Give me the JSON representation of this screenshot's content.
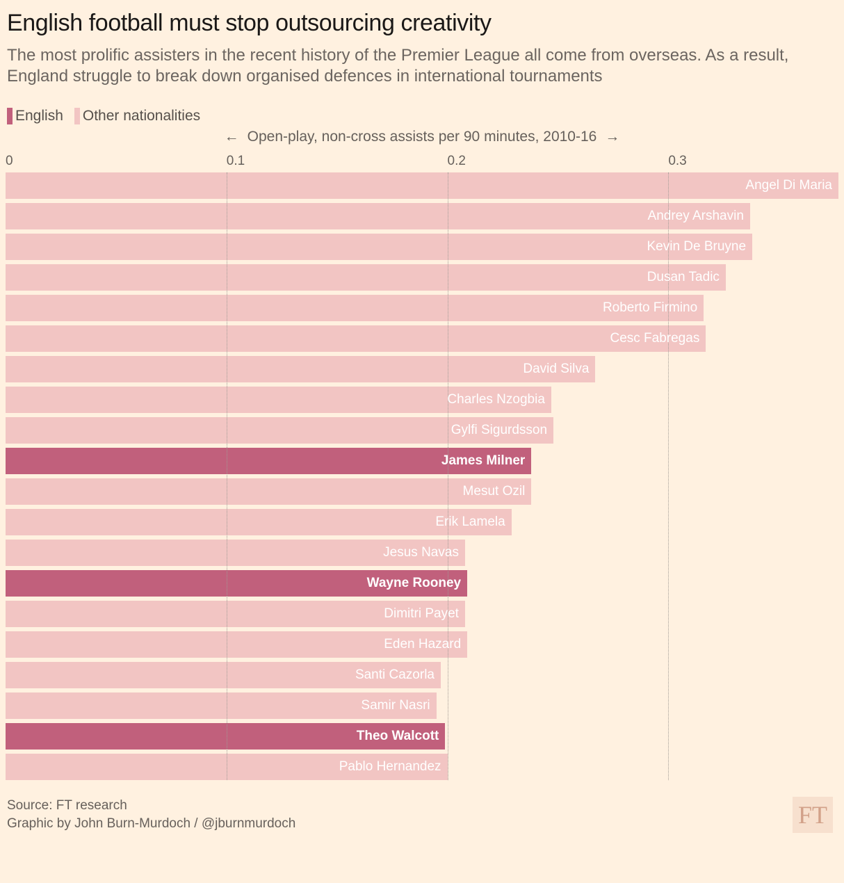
{
  "header": {
    "title": "English football must stop outsourcing creativity",
    "subtitle": "The most prolific assisters in the recent history of the Premier League all come from overseas. As a result, England struggle to break down organised defences in international tournaments"
  },
  "colors": {
    "background": "#fff1e0",
    "english": "#c1607c",
    "other": "#f2c5c3",
    "gridline": "#a19c96",
    "bar_label": "#ffffff"
  },
  "legend": {
    "items": [
      {
        "label": "English",
        "group": "english"
      },
      {
        "label": "Other nationalities",
        "group": "other"
      }
    ]
  },
  "axis": {
    "left_arrow": "←",
    "right_arrow": "→"
  },
  "chart_data": {
    "type": "bar",
    "orientation": "horizontal",
    "title": "English football must stop outsourcing creativity",
    "xlabel": "Open-play, non-cross assists per 90 minutes, 2010-16",
    "xlim": [
      0,
      0.377
    ],
    "xticks": [
      0,
      0.1,
      0.2,
      0.3
    ],
    "grid": "vertical-dotted",
    "legend_position": "top-left",
    "bars": [
      {
        "label": "Angel Di Maria",
        "value": 0.377,
        "group": "other"
      },
      {
        "label": "Andrey Arshavin",
        "value": 0.337,
        "group": "other"
      },
      {
        "label": "Kevin De Bruyne",
        "value": 0.338,
        "group": "other"
      },
      {
        "label": "Dusan Tadic",
        "value": 0.326,
        "group": "other"
      },
      {
        "label": "Roberto Firmino",
        "value": 0.316,
        "group": "other"
      },
      {
        "label": "Cesc Fabregas",
        "value": 0.317,
        "group": "other"
      },
      {
        "label": "David Silva",
        "value": 0.267,
        "group": "other"
      },
      {
        "label": "Charles Nzogbia",
        "value": 0.247,
        "group": "other"
      },
      {
        "label": "Gylfi Sigurdsson",
        "value": 0.248,
        "group": "other"
      },
      {
        "label": "James Milner",
        "value": 0.238,
        "group": "english"
      },
      {
        "label": "Mesut Ozil",
        "value": 0.238,
        "group": "other"
      },
      {
        "label": "Erik Lamela",
        "value": 0.229,
        "group": "other"
      },
      {
        "label": "Jesus Navas",
        "value": 0.208,
        "group": "other"
      },
      {
        "label": "Wayne Rooney",
        "value": 0.209,
        "group": "english"
      },
      {
        "label": "Dimitri Payet",
        "value": 0.208,
        "group": "other"
      },
      {
        "label": "Eden Hazard",
        "value": 0.209,
        "group": "other"
      },
      {
        "label": "Santi Cazorla",
        "value": 0.197,
        "group": "other"
      },
      {
        "label": "Samir Nasri",
        "value": 0.195,
        "group": "other"
      },
      {
        "label": "Theo Walcott",
        "value": 0.199,
        "group": "english"
      },
      {
        "label": "Pablo Hernandez",
        "value": 0.2,
        "group": "other"
      }
    ]
  },
  "footer": {
    "source": "Source: FT research",
    "credit": "Graphic by John Burn-Murdoch / @jburnmurdoch",
    "logo": "FT"
  }
}
